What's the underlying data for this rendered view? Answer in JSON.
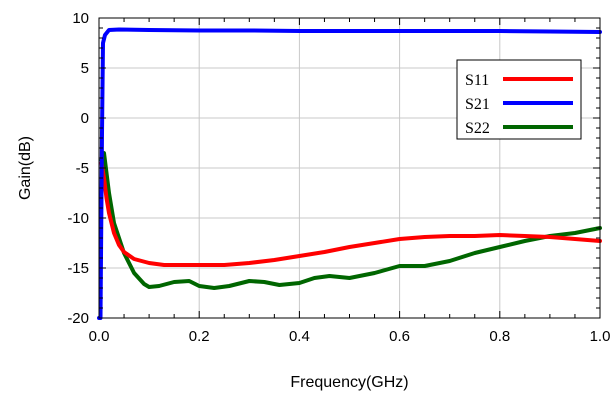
{
  "chart_data": {
    "type": "line",
    "title": "",
    "xlabel": "Frequency(GHz)",
    "ylabel": "Gain(dB)",
    "xlim": [
      0,
      1.0
    ],
    "ylim": [
      -20,
      10
    ],
    "x_ticks": [
      "0.0",
      "0.2",
      "0.4",
      "0.6",
      "0.8",
      "1.0"
    ],
    "y_ticks": [
      "10",
      "5",
      "0",
      "-5",
      "-10",
      "-15",
      "-20"
    ],
    "grid": true,
    "legend_position": "top-right",
    "series": [
      {
        "name": "S11",
        "color": "#ff0000",
        "x": [
          0.005,
          0.01,
          0.015,
          0.02,
          0.03,
          0.04,
          0.05,
          0.07,
          0.1,
          0.13,
          0.16,
          0.2,
          0.25,
          0.3,
          0.35,
          0.4,
          0.45,
          0.5,
          0.55,
          0.6,
          0.65,
          0.7,
          0.75,
          0.8,
          0.85,
          0.9,
          0.95,
          1.0
        ],
        "y": [
          -4.5,
          -6.0,
          -8.0,
          -9.5,
          -11.5,
          -12.7,
          -13.4,
          -14.1,
          -14.5,
          -14.7,
          -14.7,
          -14.7,
          -14.7,
          -14.5,
          -14.2,
          -13.8,
          -13.4,
          -12.9,
          -12.5,
          -12.1,
          -11.9,
          -11.8,
          -11.8,
          -11.7,
          -11.8,
          -11.9,
          -12.1,
          -12.3
        ]
      },
      {
        "name": "S21",
        "color": "#0000ff",
        "x": [
          0.0,
          0.003,
          0.006,
          0.008,
          0.012,
          0.02,
          0.04,
          0.1,
          0.2,
          0.3,
          0.4,
          0.5,
          0.6,
          0.7,
          0.8,
          0.9,
          1.0
        ],
        "y": [
          -20.0,
          -20.0,
          -1.5,
          7.5,
          8.3,
          8.8,
          8.85,
          8.8,
          8.75,
          8.75,
          8.7,
          8.7,
          8.7,
          8.7,
          8.7,
          8.65,
          8.6
        ]
      },
      {
        "name": "S22",
        "color": "#006600",
        "x": [
          0.005,
          0.01,
          0.015,
          0.02,
          0.03,
          0.05,
          0.07,
          0.09,
          0.1,
          0.12,
          0.15,
          0.18,
          0.2,
          0.23,
          0.26,
          0.3,
          0.33,
          0.36,
          0.4,
          0.43,
          0.46,
          0.5,
          0.55,
          0.6,
          0.65,
          0.7,
          0.75,
          0.8,
          0.85,
          0.9,
          0.95,
          1.0
        ],
        "y": [
          -4.2,
          -3.5,
          -5.5,
          -7.5,
          -10.5,
          -13.5,
          -15.5,
          -16.6,
          -16.9,
          -16.8,
          -16.4,
          -16.3,
          -16.8,
          -17.0,
          -16.8,
          -16.3,
          -16.4,
          -16.7,
          -16.5,
          -16.0,
          -15.8,
          -16.0,
          -15.5,
          -14.8,
          -14.8,
          -14.3,
          -13.5,
          -12.9,
          -12.3,
          -11.8,
          -11.5,
          -11.0
        ]
      }
    ]
  }
}
